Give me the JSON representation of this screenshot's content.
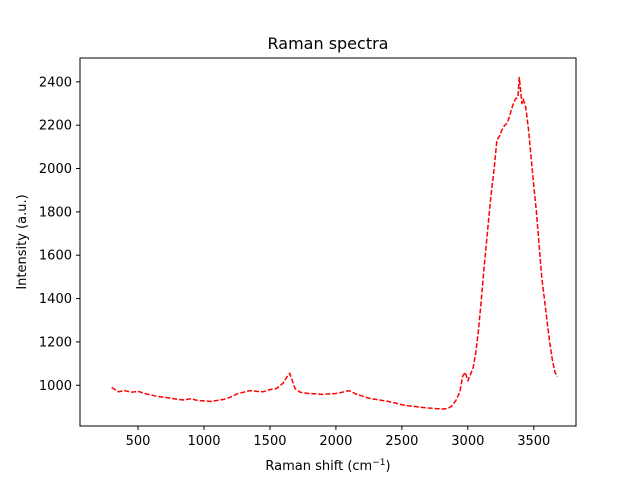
{
  "chart_data": {
    "type": "line",
    "title": "Raman spectra",
    "xlabel": "Raman shift (cm",
    "xlabel_sup": "−1",
    "xlabel_end": ")",
    "ylabel": "Intensity (a.u.)",
    "xlim": [
      60,
      3820
    ],
    "ylim": [
      812,
      2510
    ],
    "xticks": [
      500,
      1000,
      1500,
      2000,
      2500,
      3000,
      3500
    ],
    "yticks": [
      1000,
      1200,
      1400,
      1600,
      1800,
      2000,
      2200,
      2400
    ],
    "grid": false,
    "line_color": "#ff0000",
    "line_style": "dashed",
    "series": [
      {
        "x": [
          300,
          350,
          400,
          450,
          500,
          550,
          600,
          650,
          700,
          750,
          800,
          850,
          900,
          950,
          1000,
          1050,
          1100,
          1150,
          1200,
          1250,
          1300,
          1350,
          1400,
          1450,
          1500,
          1550,
          1600,
          1630,
          1650,
          1670,
          1690,
          1710,
          1730,
          1750,
          1800,
          1850,
          1900,
          1950,
          2000,
          2050,
          2100,
          2150,
          2200,
          2250,
          2300,
          2350,
          2400,
          2450,
          2500,
          2550,
          2600,
          2650,
          2700,
          2750,
          2800,
          2850,
          2880,
          2910,
          2940,
          2960,
          2980,
          3000,
          3020,
          3040,
          3060,
          3080,
          3100,
          3120,
          3140,
          3160,
          3180,
          3200,
          3220,
          3240,
          3260,
          3280,
          3300,
          3320,
          3340,
          3360,
          3380,
          3390,
          3400,
          3410,
          3420,
          3440,
          3460,
          3480,
          3500,
          3520,
          3540,
          3560,
          3580,
          3600,
          3620,
          3640,
          3660,
          3680
        ],
        "y": [
          990,
          970,
          975,
          968,
          972,
          962,
          955,
          948,
          945,
          940,
          935,
          932,
          938,
          930,
          928,
          925,
          930,
          935,
          945,
          960,
          968,
          975,
          972,
          970,
          980,
          985,
          1010,
          1040,
          1055,
          1020,
          985,
          975,
          968,
          965,
          962,
          960,
          958,
          960,
          962,
          968,
          975,
          960,
          950,
          940,
          935,
          930,
          925,
          918,
          910,
          905,
          902,
          898,
          895,
          893,
          890,
          893,
          905,
          930,
          970,
          1040,
          1060,
          1020,
          1050,
          1080,
          1150,
          1250,
          1380,
          1520,
          1650,
          1780,
          1900,
          2000,
          2130,
          2150,
          2180,
          2200,
          2210,
          2250,
          2290,
          2320,
          2330,
          2420,
          2360,
          2300,
          2320,
          2280,
          2180,
          2050,
          1920,
          1800,
          1650,
          1500,
          1400,
          1300,
          1200,
          1120,
          1060,
          1040
        ]
      }
    ]
  }
}
